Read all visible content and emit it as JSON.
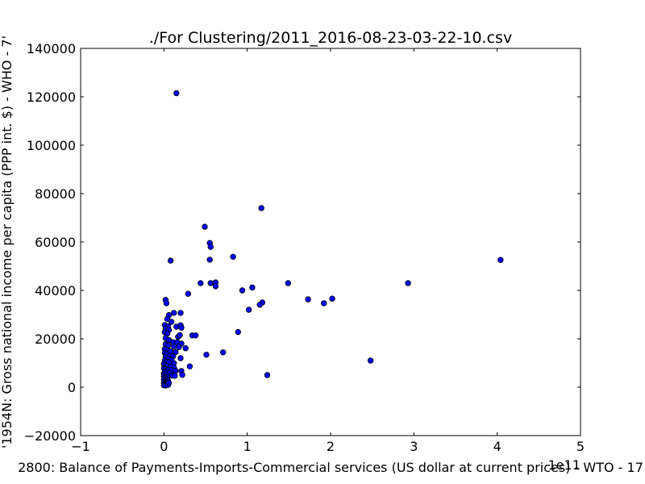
{
  "chart_data": {
    "type": "scatter",
    "title": "./For Clustering/2011_2016-08-23-03-22-10.csv",
    "xlabel": "2800: Balance of Payments-Imports-Commercial services (US dollar at current prices) - WTO - 17",
    "ylabel": "'1954N: Gross national income per capita (PPP int. $) - WHO - 7'",
    "x_offset_label": "1e11",
    "xlim": [
      -1,
      5
    ],
    "ylim": [
      -20000,
      140000
    ],
    "x_ticks": [
      "−1",
      "0",
      "1",
      "2",
      "3",
      "4",
      "5"
    ],
    "y_ticks": [
      "−20000",
      "0",
      "20000",
      "40000",
      "60000",
      "80000",
      "100000",
      "120000",
      "140000"
    ],
    "x_tick_values": [
      -1,
      0,
      1,
      2,
      3,
      4,
      5
    ],
    "y_tick_values": [
      -20000,
      0,
      20000,
      40000,
      60000,
      80000,
      100000,
      120000,
      140000
    ],
    "grid": false,
    "marker_color": "#0000ff",
    "series": [
      {
        "points": [
          [
            0.15,
            121500
          ],
          [
            1.17,
            74000
          ],
          [
            0.49,
            66300
          ],
          [
            0.55,
            59600
          ],
          [
            0.56,
            58000
          ],
          [
            0.55,
            52700
          ],
          [
            0.08,
            52300
          ],
          [
            0.83,
            53900
          ],
          [
            4.04,
            52600
          ],
          [
            2.93,
            43000
          ],
          [
            1.49,
            43000
          ],
          [
            0.44,
            43000
          ],
          [
            0.56,
            43000
          ],
          [
            0.62,
            43300
          ],
          [
            0.62,
            41700
          ],
          [
            0.94,
            40000
          ],
          [
            1.06,
            41200
          ],
          [
            0.29,
            38600
          ],
          [
            1.73,
            36300
          ],
          [
            2.02,
            36600
          ],
          [
            1.92,
            34700
          ],
          [
            1.18,
            35000
          ],
          [
            1.15,
            34100
          ],
          [
            1.02,
            32000
          ],
          [
            0.02,
            36100
          ],
          [
            0.03,
            34700
          ],
          [
            0.12,
            30700
          ],
          [
            0.2,
            30700
          ],
          [
            0.06,
            29800
          ],
          [
            0.04,
            28200
          ],
          [
            0.09,
            27000
          ],
          [
            0.01,
            25700
          ],
          [
            0.05,
            25200
          ],
          [
            0.15,
            25000
          ],
          [
            0.2,
            25600
          ],
          [
            0.21,
            24600
          ],
          [
            0.02,
            24300
          ],
          [
            0.06,
            23600
          ],
          [
            0.01,
            22700
          ],
          [
            0.04,
            22200
          ],
          [
            0.34,
            21400
          ],
          [
            0.38,
            21400
          ],
          [
            0.89,
            22800
          ],
          [
            0.17,
            20800
          ],
          [
            0.19,
            21500
          ],
          [
            0.02,
            20300
          ],
          [
            0.06,
            19500
          ],
          [
            0.11,
            18600
          ],
          [
            0.16,
            18500
          ],
          [
            0.21,
            18000
          ],
          [
            0.02,
            17800
          ],
          [
            0.05,
            17200
          ],
          [
            0.12,
            16900
          ],
          [
            0.18,
            16600
          ],
          [
            0.26,
            16100
          ],
          [
            0.01,
            15800
          ],
          [
            0.04,
            15300
          ],
          [
            0.08,
            14900
          ],
          [
            0.14,
            14500
          ],
          [
            0.71,
            14400
          ],
          [
            0.51,
            13400
          ],
          [
            0.01,
            14200
          ],
          [
            0.03,
            13600
          ],
          [
            0.07,
            13000
          ],
          [
            0.11,
            12800
          ],
          [
            0.2,
            12000
          ],
          [
            0.02,
            12500
          ],
          [
            0.05,
            11800
          ],
          [
            0.09,
            11200
          ],
          [
            2.48,
            11000
          ],
          [
            0.01,
            11000
          ],
          [
            0.03,
            10500
          ],
          [
            0.06,
            10200
          ],
          [
            0.12,
            9900
          ],
          [
            0.0,
            9600
          ],
          [
            0.02,
            9100
          ],
          [
            0.04,
            8800
          ],
          [
            0.31,
            8600
          ],
          [
            0.08,
            8400
          ],
          [
            0.12,
            8100
          ],
          [
            0.0,
            7800
          ],
          [
            0.02,
            7500
          ],
          [
            0.05,
            7200
          ],
          [
            0.09,
            7000
          ],
          [
            0.14,
            6800
          ],
          [
            0.21,
            6700
          ],
          [
            0.01,
            6400
          ],
          [
            0.03,
            6100
          ],
          [
            0.06,
            5800
          ],
          [
            0.0,
            5600
          ],
          [
            0.02,
            5300
          ],
          [
            0.22,
            5100
          ],
          [
            1.24,
            5000
          ],
          [
            0.1,
            4800
          ],
          [
            0.13,
            4700
          ],
          [
            0.0,
            4500
          ],
          [
            0.02,
            4300
          ],
          [
            0.04,
            4000
          ],
          [
            0.01,
            3700
          ],
          [
            0.03,
            3400
          ],
          [
            0.0,
            3100
          ],
          [
            0.02,
            2800
          ],
          [
            0.05,
            2600
          ],
          [
            0.01,
            2300
          ],
          [
            0.03,
            2000
          ],
          [
            0.0,
            1700
          ],
          [
            0.02,
            1500
          ],
          [
            0.04,
            1300
          ],
          [
            0.01,
            1100
          ],
          [
            0.03,
            900
          ],
          [
            0.0,
            800
          ],
          [
            0.02,
            700
          ],
          [
            0.05,
            1000
          ],
          [
            0.06,
            1800
          ]
        ]
      }
    ]
  }
}
